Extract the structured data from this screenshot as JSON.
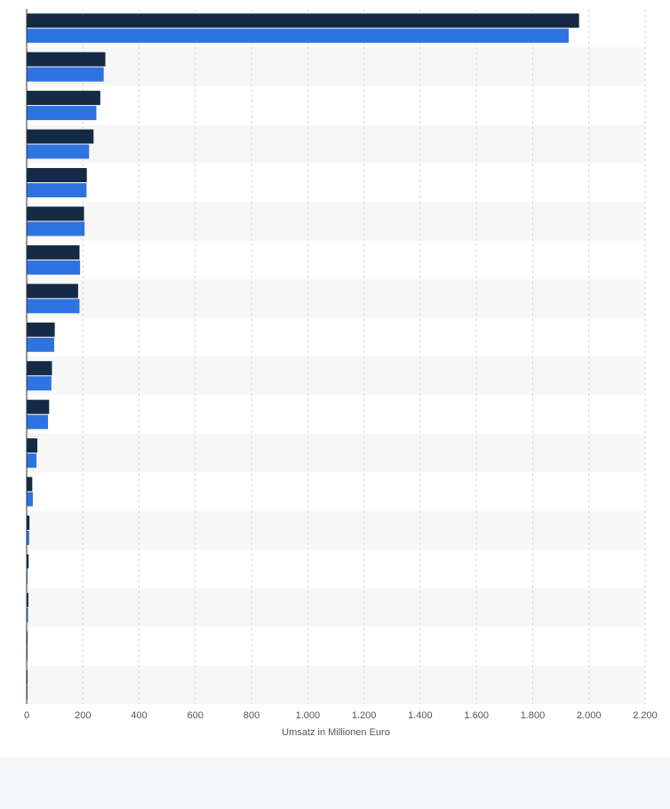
{
  "chart_data": {
    "type": "bar",
    "orientation": "horizontal",
    "categories": [
      "",
      "",
      "",
      "",
      "",
      "",
      "",
      "",
      "",
      "",
      "",
      "",
      "",
      "",
      "",
      "",
      "",
      ""
    ],
    "series": [
      {
        "values": [
          1965,
          280,
          262,
          238,
          214,
          204,
          188,
          183,
          100,
          90,
          80,
          38,
          20,
          10,
          7,
          6,
          3,
          2
        ],
        "color": "#152a44"
      },
      {
        "values": [
          1928,
          274,
          248,
          222,
          213,
          206,
          190,
          188,
          98,
          88,
          76,
          35,
          22,
          9,
          3,
          5,
          2,
          1
        ],
        "color": "#2f73e0"
      }
    ],
    "xlim": [
      0,
      2200
    ],
    "xticks": [
      "0",
      "200",
      "400",
      "600",
      "800",
      "1.000",
      "1.200",
      "1.400",
      "1.600",
      "1.800",
      "2.000",
      "2.200"
    ],
    "xlabel": "Umsatz in Millionen Euro",
    "grid": true
  }
}
